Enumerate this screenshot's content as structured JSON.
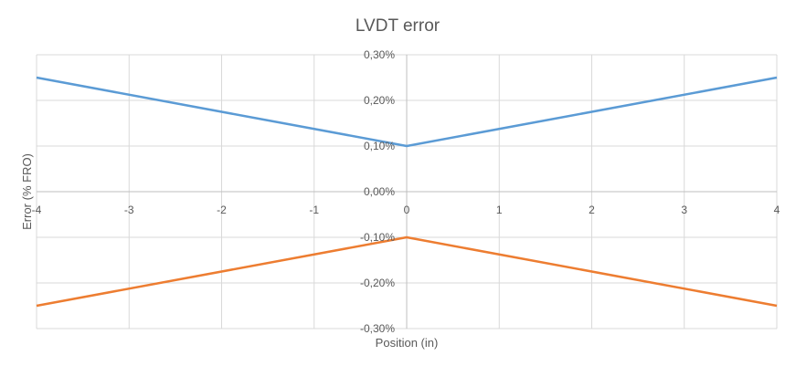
{
  "chart_data": {
    "type": "line",
    "title": "LVDT error",
    "xlabel": "Position (in)",
    "ylabel": "Error (% FRO)",
    "xlim": [
      -4,
      4
    ],
    "ylim": [
      -0.3,
      0.3
    ],
    "x_ticks": [
      -4,
      -3,
      -2,
      -1,
      0,
      1,
      2,
      3,
      4
    ],
    "x_tick_labels": [
      "-4",
      "-3",
      "-2",
      "-1",
      "0",
      "1",
      "2",
      "3",
      "4"
    ],
    "y_ticks": [
      0.3,
      0.2,
      0.1,
      0.0,
      -0.1,
      -0.2,
      -0.3
    ],
    "y_tick_labels": [
      "0,30%",
      "0,20%",
      "0,10%",
      "0,00%",
      "-0,10%",
      "-0,20%",
      "-0,30%"
    ],
    "grid": true,
    "legend": "none",
    "series": [
      {
        "color": "#5B9BD5",
        "x": [
          -4,
          0,
          4
        ],
        "y": [
          0.25,
          0.1,
          0.25
        ]
      },
      {
        "color": "#ED7D31",
        "x": [
          -4,
          0,
          4
        ],
        "y": [
          -0.25,
          -0.1,
          -0.25
        ]
      }
    ]
  }
}
